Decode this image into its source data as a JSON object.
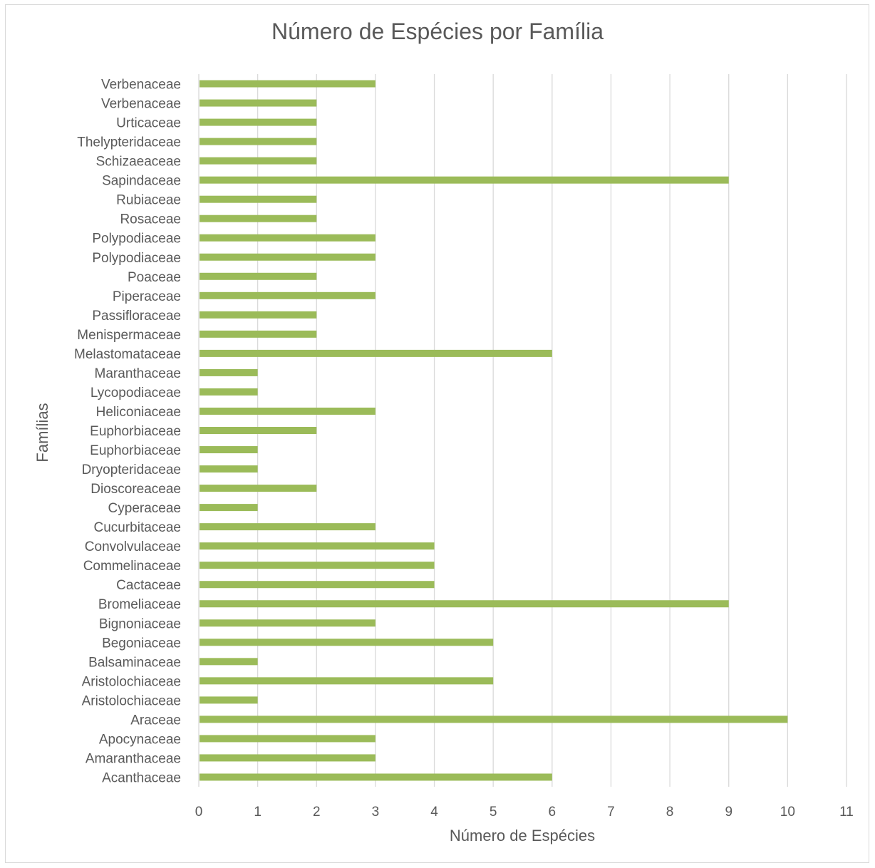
{
  "chart_data": {
    "type": "bar",
    "orientation": "horizontal",
    "title": "Número de Espécies por Família",
    "xlabel": "Número de Espécies",
    "ylabel": "Famílias",
    "categories": [
      "Acanthaceae",
      "Amaranthaceae",
      "Apocynaceae",
      "Araceae",
      "Aristolochiaceae",
      "Aristolochiaceae",
      "Balsaminaceae",
      "Begoniaceae",
      "Bignoniaceae",
      "Bromeliaceae",
      "Cactaceae",
      "Commelinaceae",
      "Convolvulaceae",
      "Cucurbitaceae",
      "Cyperaceae",
      "Dioscoreaceae",
      "Dryopteridaceae",
      "Euphorbiaceae",
      "Euphorbiaceae",
      "Heliconiaceae",
      "Lycopodiaceae",
      "Maranthaceae",
      "Melastomataceae",
      "Menispermaceae",
      "Passifloraceae",
      "Piperaceae",
      "Poaceae",
      "Polypodiaceae",
      "Polypodiaceae",
      "Rosaceae",
      "Rubiaceae",
      "Sapindaceae",
      "Schizaeaceae",
      "Thelypteridaceae",
      "Urticaceae",
      "Verbenaceae",
      "Verbenaceae"
    ],
    "values": [
      6,
      3,
      3,
      10,
      1,
      5,
      1,
      5,
      3,
      9,
      4,
      4,
      4,
      3,
      1,
      2,
      1,
      1,
      2,
      3,
      1,
      1,
      6,
      2,
      2,
      3,
      2,
      3,
      3,
      2,
      2,
      9,
      2,
      2,
      2,
      2,
      3
    ],
    "xlim": [
      0,
      11
    ],
    "x_ticks": [
      "0",
      "1",
      "2",
      "3",
      "4",
      "5",
      "6",
      "7",
      "8",
      "9",
      "10",
      "11"
    ],
    "grid": "vertical",
    "legend": "none",
    "bar_color": "#9bbb59",
    "grid_color": "#d9d9d9",
    "text_color": "#595959"
  }
}
